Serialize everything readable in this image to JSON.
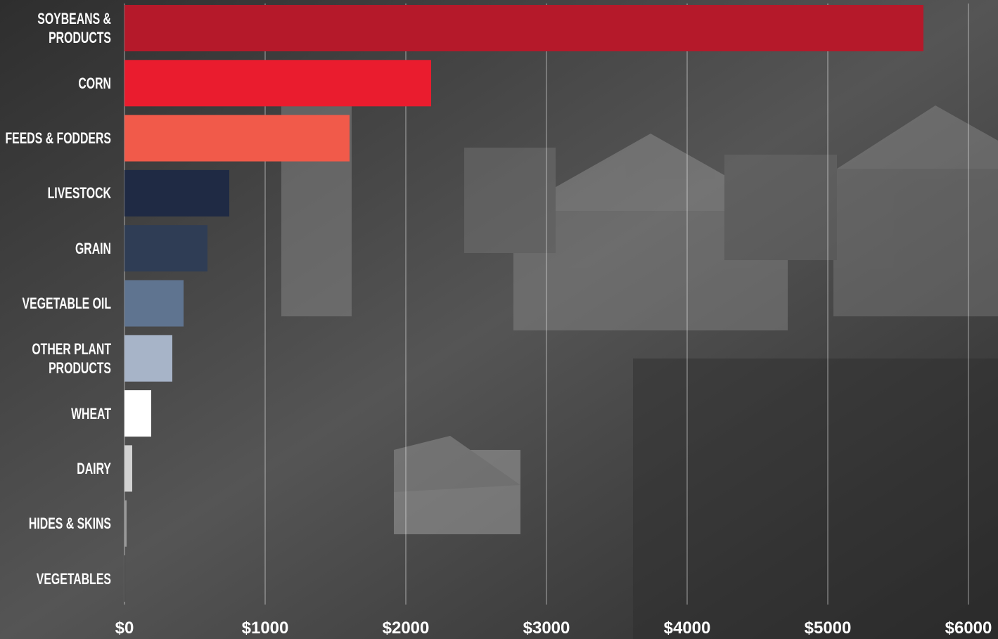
{
  "chart_data": {
    "type": "bar",
    "orientation": "horizontal",
    "categories": [
      "SOYBEANS & PRODUCTS",
      "CORN",
      "FEEDS & FODDERS",
      "LIVESTOCK",
      "GRAIN",
      "VEGETABLE OIL",
      "OTHER PLANT PRODUCTS",
      "WHEAT",
      "DAIRY",
      "HIDES & SKINS",
      "VEGETABLES"
    ],
    "values": [
      5680,
      2180,
      1600,
      745,
      590,
      420,
      340,
      190,
      55,
      15,
      5
    ],
    "colors": [
      "#b5192a",
      "#ea1c2e",
      "#f15a4a",
      "#1f2a44",
      "#2f3d55",
      "#5f7490",
      "#a7b4c8",
      "#ffffff",
      "#d2d2d2",
      "#9a9a9a",
      "#2a2a2a"
    ],
    "xlim": [
      0,
      6000
    ],
    "xticks": [
      {
        "value": 0,
        "label": "$0"
      },
      {
        "value": 1000,
        "label": "$1000"
      },
      {
        "value": 2000,
        "label": "$2000"
      },
      {
        "value": 3000,
        "label": "$3000"
      },
      {
        "value": 4000,
        "label": "$4000"
      },
      {
        "value": 5000,
        "label": "$5000"
      },
      {
        "value": 6000,
        "label": "$6000"
      }
    ],
    "grid": true
  }
}
